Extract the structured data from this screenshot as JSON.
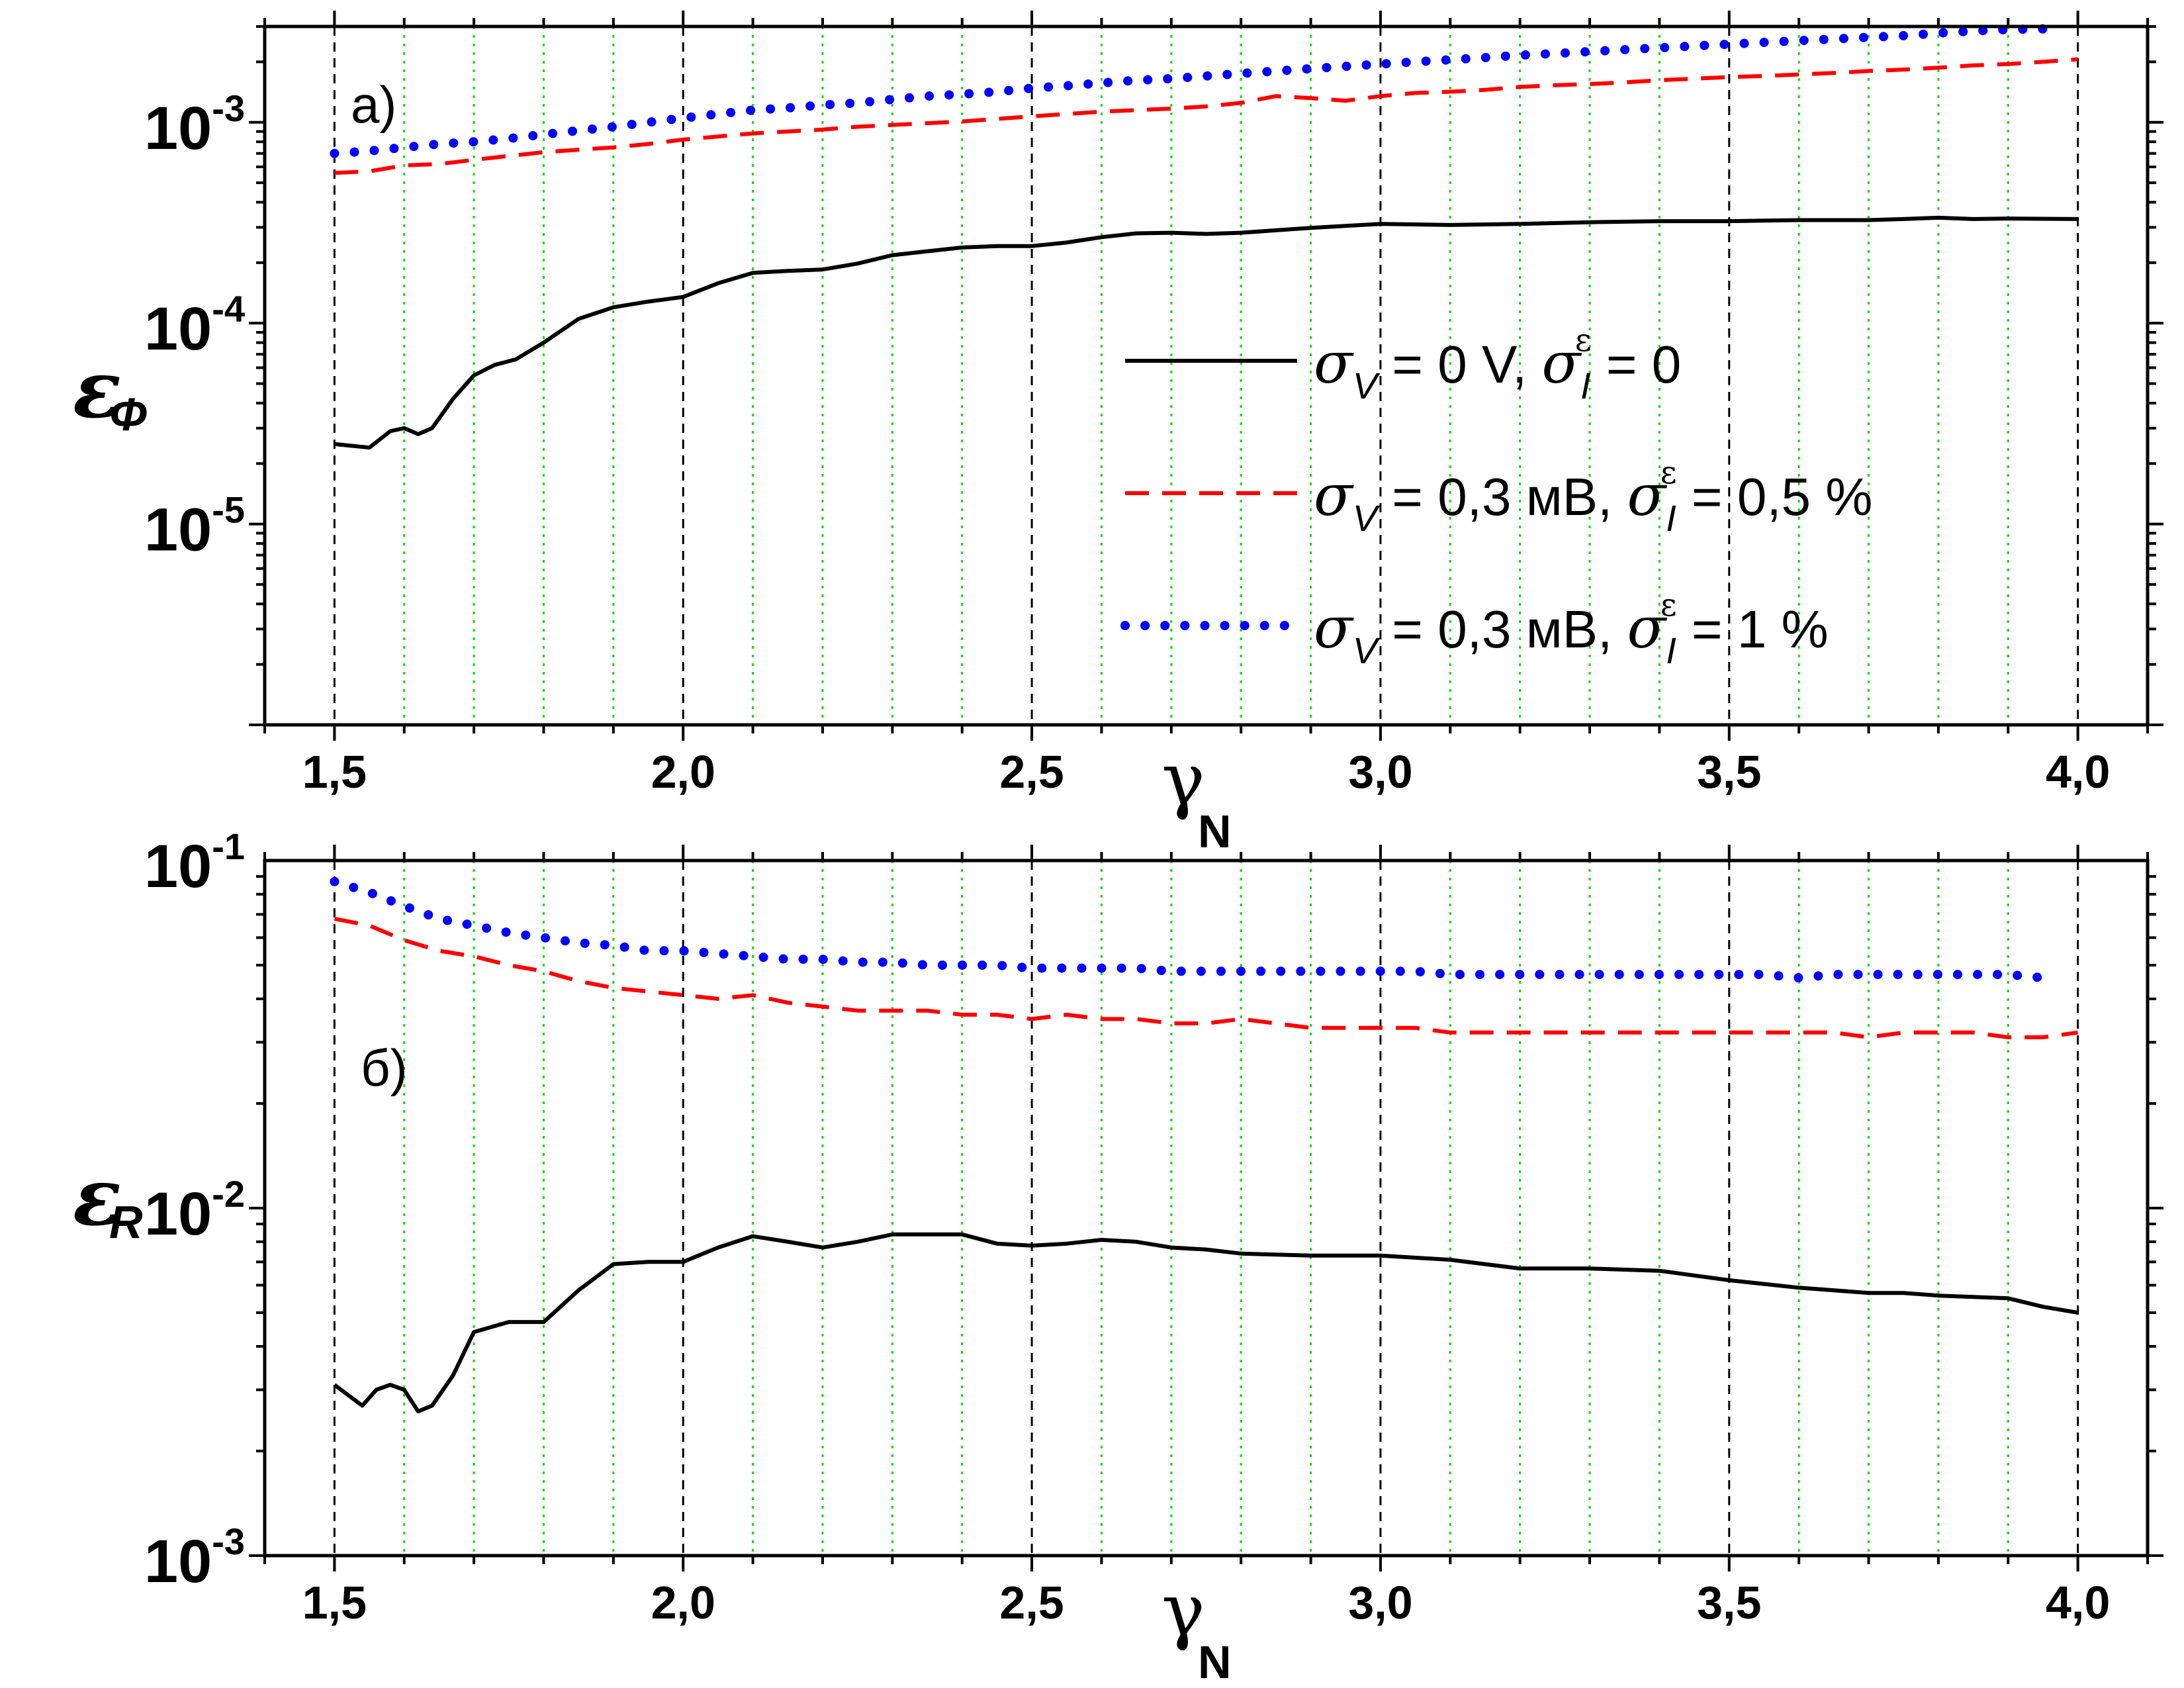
{
  "chart_data": [
    {
      "type": "line",
      "panel_label": "а)",
      "yscale": "log",
      "xlim": [
        1.4,
        4.1
      ],
      "ylim": [
        1e-06,
        0.003
      ],
      "xticks": [
        1.5,
        2.0,
        2.5,
        3.0,
        3.5,
        4.0
      ],
      "xtick_labels": [
        "1,5",
        "2,0",
        "2,5",
        "3,0",
        "3,5",
        "4,0"
      ],
      "yticks": [
        1e-05,
        0.0001,
        0.001
      ],
      "ytick_labels": [
        {
          "base": "10",
          "exp": "-5"
        },
        {
          "base": "10",
          "exp": "-4"
        },
        {
          "base": "10",
          "exp": "-3"
        }
      ],
      "xlabel": {
        "main": "γ",
        "sub": "N"
      },
      "ylabel": {
        "main": "ε",
        "sub": "Φ"
      },
      "grid_major_x": [
        1.5,
        2.0,
        2.5,
        3.0,
        3.5,
        4.0
      ],
      "grid_minor_x": [
        1.6,
        1.7,
        1.8,
        1.9,
        2.1,
        2.2,
        2.3,
        2.4,
        2.6,
        2.7,
        2.8,
        2.9,
        3.1,
        3.2,
        3.3,
        3.4,
        3.6,
        3.7,
        3.8,
        3.9
      ],
      "series": [
        {
          "style": "solid",
          "color": "#000000",
          "x": [
            1.5,
            1.55,
            1.58,
            1.6,
            1.62,
            1.64,
            1.67,
            1.7,
            1.73,
            1.76,
            1.8,
            1.85,
            1.9,
            1.95,
            2.0,
            2.05,
            2.1,
            2.15,
            2.2,
            2.25,
            2.3,
            2.35,
            2.4,
            2.45,
            2.5,
            2.55,
            2.6,
            2.65,
            2.7,
            2.75,
            2.8,
            2.85,
            2.9,
            2.95,
            3.0,
            3.1,
            3.2,
            3.3,
            3.4,
            3.5,
            3.6,
            3.7,
            3.75,
            3.8,
            3.85,
            3.9,
            4.0
          ],
          "y": [
            2.5e-05,
            2.4e-05,
            2.9e-05,
            3e-05,
            2.8e-05,
            3e-05,
            4.2e-05,
            5.5e-05,
            6.2e-05,
            6.6e-05,
            8e-05,
            0.000105,
            0.00012,
            0.000128,
            0.000135,
            0.000158,
            0.000178,
            0.000182,
            0.000185,
            0.000198,
            0.000218,
            0.000228,
            0.000238,
            0.000242,
            0.000242,
            0.000252,
            0.000268,
            0.00028,
            0.000282,
            0.000278,
            0.000282,
            0.00029,
            0.000298,
            0.000305,
            0.000312,
            0.000308,
            0.000312,
            0.000318,
            0.000322,
            0.000322,
            0.000326,
            0.000326,
            0.00033,
            0.000335,
            0.00033,
            0.000332,
            0.00033
          ]
        },
        {
          "style": "dashed",
          "color": "#ff0000",
          "x": [
            1.5,
            1.55,
            1.6,
            1.65,
            1.7,
            1.75,
            1.8,
            1.85,
            1.9,
            1.95,
            2.0,
            2.05,
            2.1,
            2.15,
            2.2,
            2.25,
            2.3,
            2.35,
            2.4,
            2.45,
            2.5,
            2.55,
            2.6,
            2.65,
            2.7,
            2.75,
            2.8,
            2.85,
            2.9,
            2.95,
            3.0,
            3.05,
            3.1,
            3.15,
            3.2,
            3.25,
            3.3,
            3.35,
            3.4,
            3.45,
            3.5,
            3.55,
            3.6,
            3.65,
            3.7,
            3.75,
            3.8,
            3.85,
            3.9,
            3.95,
            4.0
          ],
          "y": [
            0.00056,
            0.00057,
            0.00061,
            0.00062,
            0.00065,
            0.00068,
            0.00071,
            0.00073,
            0.00075,
            0.00078,
            0.00082,
            0.00085,
            0.00088,
            0.0009,
            0.00092,
            0.00095,
            0.00097,
            0.00099,
            0.00101,
            0.00104,
            0.00107,
            0.0011,
            0.00113,
            0.00115,
            0.00117,
            0.0012,
            0.00125,
            0.00135,
            0.00132,
            0.00128,
            0.00135,
            0.0014,
            0.00142,
            0.00145,
            0.0015,
            0.00153,
            0.00155,
            0.00158,
            0.00162,
            0.00165,
            0.00168,
            0.0017,
            0.00173,
            0.00176,
            0.0018,
            0.00183,
            0.00187,
            0.00192,
            0.00195,
            0.002,
            0.00206
          ]
        },
        {
          "style": "dotted",
          "color": "#0000ff",
          "x": [
            1.5,
            1.55,
            1.6,
            1.65,
            1.7,
            1.75,
            1.8,
            1.85,
            1.9,
            1.95,
            2.0,
            2.05,
            2.1,
            2.15,
            2.2,
            2.25,
            2.3,
            2.35,
            2.4,
            2.45,
            2.5,
            2.55,
            2.6,
            2.65,
            2.7,
            2.75,
            2.8,
            2.85,
            2.9,
            2.95,
            3.0,
            3.05,
            3.1,
            3.15,
            3.2,
            3.25,
            3.3,
            3.35,
            3.4,
            3.45,
            3.5,
            3.55,
            3.6,
            3.65,
            3.7,
            3.75,
            3.8,
            3.85,
            3.9,
            3.95
          ],
          "y": [
            0.0007,
            0.00072,
            0.00075,
            0.00078,
            0.0008,
            0.00083,
            0.00087,
            0.00091,
            0.00095,
            0.001,
            0.00105,
            0.0011,
            0.00115,
            0.00118,
            0.00122,
            0.00125,
            0.0013,
            0.00135,
            0.00138,
            0.00142,
            0.00148,
            0.00152,
            0.00157,
            0.00162,
            0.00165,
            0.0017,
            0.00175,
            0.0018,
            0.00185,
            0.0019,
            0.00195,
            0.002,
            0.00205,
            0.0021,
            0.00216,
            0.0022,
            0.00225,
            0.0023,
            0.00235,
            0.0024,
            0.00245,
            0.0025,
            0.00255,
            0.0026,
            0.00265,
            0.0027,
            0.00278,
            0.00285,
            0.0029,
            0.00292
          ]
        }
      ],
      "legend": [
        {
          "style": "solid",
          "color": "#000000",
          "sigmaV_val": " = 0 V, ",
          "sigmaI_val": " = 0"
        },
        {
          "style": "dashed",
          "color": "#ff0000",
          "sigmaV_val": " = 0,3 мВ, ",
          "sigmaI_val": " = 0,5 %"
        },
        {
          "style": "dotted",
          "color": "#0000ff",
          "sigmaV_val": " = 0,3 мВ, ",
          "sigmaI_val": " = 1 %"
        }
      ],
      "legend_symbols": {
        "sigma": "σ",
        "sub_V": "V",
        "sub_I": "I",
        "sup_eps": "ε"
      },
      "legend_position": "right"
    },
    {
      "type": "line",
      "panel_label": "б)",
      "yscale": "log",
      "xlim": [
        1.4,
        4.1
      ],
      "ylim": [
        0.001,
        0.1
      ],
      "xticks": [
        1.5,
        2.0,
        2.5,
        3.0,
        3.5,
        4.0
      ],
      "xtick_labels": [
        "1,5",
        "2,0",
        "2,5",
        "3,0",
        "3,5",
        "4,0"
      ],
      "yticks": [
        0.001,
        0.01,
        0.1
      ],
      "ytick_labels": [
        {
          "base": "10",
          "exp": "-3"
        },
        {
          "base": "10",
          "exp": "-2"
        },
        {
          "base": "10",
          "exp": "-1"
        }
      ],
      "xlabel": {
        "main": "γ",
        "sub": "N"
      },
      "ylabel": {
        "main": "ε",
        "sub": "R"
      },
      "grid_major_x": [
        1.5,
        2.0,
        2.5,
        3.0,
        3.5,
        4.0
      ],
      "grid_minor_x": [
        1.6,
        1.7,
        1.8,
        1.9,
        2.1,
        2.2,
        2.3,
        2.4,
        2.6,
        2.7,
        2.8,
        2.9,
        3.1,
        3.2,
        3.3,
        3.4,
        3.6,
        3.7,
        3.8,
        3.9
      ],
      "series": [
        {
          "style": "solid",
          "color": "#000000",
          "x": [
            1.5,
            1.54,
            1.56,
            1.58,
            1.6,
            1.62,
            1.64,
            1.67,
            1.7,
            1.75,
            1.8,
            1.85,
            1.9,
            1.95,
            2.0,
            2.05,
            2.1,
            2.15,
            2.2,
            2.25,
            2.3,
            2.35,
            2.4,
            2.45,
            2.5,
            2.55,
            2.6,
            2.65,
            2.7,
            2.75,
            2.8,
            2.9,
            3.0,
            3.1,
            3.2,
            3.3,
            3.4,
            3.5,
            3.6,
            3.7,
            3.75,
            3.8,
            3.9,
            3.95,
            4.0
          ],
          "y": [
            0.0031,
            0.0027,
            0.003,
            0.0031,
            0.003,
            0.0026,
            0.0027,
            0.0033,
            0.0044,
            0.0047,
            0.0047,
            0.0058,
            0.0069,
            0.007,
            0.007,
            0.0077,
            0.0083,
            0.008,
            0.0077,
            0.008,
            0.0084,
            0.0084,
            0.0084,
            0.0079,
            0.0078,
            0.0079,
            0.0081,
            0.008,
            0.0077,
            0.0076,
            0.0074,
            0.0073,
            0.0073,
            0.0071,
            0.0067,
            0.0067,
            0.0066,
            0.0062,
            0.0059,
            0.0057,
            0.0057,
            0.0056,
            0.0055,
            0.0052,
            0.005
          ]
        },
        {
          "style": "dashed",
          "color": "#ff0000",
          "x": [
            1.5,
            1.55,
            1.6,
            1.65,
            1.7,
            1.75,
            1.8,
            1.85,
            1.9,
            1.95,
            2.0,
            2.05,
            2.1,
            2.15,
            2.2,
            2.25,
            2.3,
            2.35,
            2.4,
            2.45,
            2.5,
            2.55,
            2.6,
            2.65,
            2.7,
            2.75,
            2.8,
            2.85,
            2.9,
            2.95,
            3.0,
            3.05,
            3.1,
            3.15,
            3.2,
            3.25,
            3.3,
            3.35,
            3.4,
            3.45,
            3.5,
            3.55,
            3.6,
            3.65,
            3.7,
            3.75,
            3.8,
            3.85,
            3.9,
            3.95,
            4.0
          ],
          "y": [
            0.068,
            0.065,
            0.059,
            0.055,
            0.053,
            0.05,
            0.048,
            0.045,
            0.043,
            0.042,
            0.041,
            0.04,
            0.041,
            0.039,
            0.038,
            0.037,
            0.037,
            0.037,
            0.036,
            0.036,
            0.035,
            0.036,
            0.035,
            0.035,
            0.034,
            0.034,
            0.035,
            0.034,
            0.033,
            0.033,
            0.033,
            0.033,
            0.032,
            0.032,
            0.032,
            0.032,
            0.032,
            0.032,
            0.032,
            0.032,
            0.032,
            0.032,
            0.032,
            0.032,
            0.031,
            0.032,
            0.032,
            0.032,
            0.031,
            0.031,
            0.032
          ]
        },
        {
          "style": "dotted",
          "color": "#0000ff",
          "x": [
            1.5,
            1.55,
            1.6,
            1.65,
            1.7,
            1.75,
            1.8,
            1.85,
            1.9,
            1.95,
            2.0,
            2.05,
            2.1,
            2.15,
            2.2,
            2.25,
            2.3,
            2.35,
            2.4,
            2.45,
            2.5,
            2.55,
            2.6,
            2.65,
            2.7,
            2.75,
            2.8,
            2.85,
            2.9,
            2.95,
            3.0,
            3.05,
            3.1,
            3.15,
            3.2,
            3.25,
            3.3,
            3.35,
            3.4,
            3.45,
            3.5,
            3.55,
            3.6,
            3.65,
            3.7,
            3.75,
            3.8,
            3.85,
            3.9,
            3.95
          ],
          "y": [
            0.087,
            0.081,
            0.074,
            0.068,
            0.065,
            0.062,
            0.06,
            0.058,
            0.057,
            0.055,
            0.055,
            0.054,
            0.053,
            0.052,
            0.052,
            0.051,
            0.051,
            0.05,
            0.05,
            0.05,
            0.049,
            0.049,
            0.049,
            0.049,
            0.048,
            0.048,
            0.048,
            0.048,
            0.048,
            0.048,
            0.048,
            0.048,
            0.047,
            0.047,
            0.047,
            0.047,
            0.047,
            0.047,
            0.047,
            0.047,
            0.047,
            0.047,
            0.046,
            0.047,
            0.047,
            0.047,
            0.047,
            0.047,
            0.047,
            0.046
          ]
        }
      ]
    }
  ]
}
